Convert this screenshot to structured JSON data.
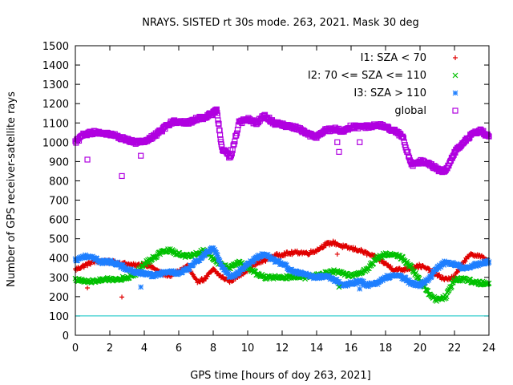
{
  "chart_data": {
    "type": "scatter",
    "title": "NRAYS. SISTED rt 30s mode. 263, 2021. Mask 30 deg",
    "xlabel": "GPS time [hours of doy 263, 2021]",
    "ylabel": "Number of GPS receiver-satellite rays",
    "xlim": [
      0,
      24
    ],
    "ylim": [
      0,
      1500
    ],
    "xticks": [
      0,
      2,
      4,
      6,
      8,
      10,
      12,
      14,
      16,
      18,
      20,
      22,
      24
    ],
    "yticks": [
      0,
      100,
      200,
      300,
      400,
      500,
      600,
      700,
      800,
      900,
      1000,
      1100,
      1200,
      1300,
      1400,
      1500
    ],
    "legend_position": "top-right",
    "reference_line": {
      "y": 100,
      "color": "#00c0c0"
    },
    "series": [
      {
        "name": "I1: SZA < 70",
        "marker": "+",
        "color": "#e00000",
        "x": [
          0,
          0.5,
          1,
          1.5,
          2,
          2.5,
          3,
          3.5,
          4,
          4.5,
          5,
          5.5,
          6,
          6.5,
          7,
          7.5,
          8,
          8.5,
          9,
          9.5,
          10,
          10.5,
          11,
          11.5,
          12,
          12.5,
          13,
          13.5,
          14,
          14.5,
          15,
          15.5,
          16,
          16.5,
          17,
          17.5,
          18,
          18.5,
          19,
          19.5,
          20,
          20.5,
          21,
          21.5,
          22,
          22.5,
          23,
          23.5,
          24
        ],
        "y": [
          340,
          360,
          380,
          385,
          380,
          375,
          370,
          360,
          370,
          350,
          320,
          310,
          330,
          360,
          280,
          290,
          340,
          300,
          280,
          310,
          340,
          370,
          390,
          410,
          420,
          425,
          430,
          425,
          440,
          470,
          480,
          460,
          450,
          440,
          420,
          400,
          370,
          340,
          340,
          350,
          360,
          340,
          310,
          290,
          300,
          380,
          420,
          410,
          380
        ]
      },
      {
        "name": "I2: 70 <= SZA <= 110",
        "marker": "x",
        "color": "#00c000",
        "x": [
          0,
          0.5,
          1,
          1.5,
          2,
          2.5,
          3,
          3.5,
          4,
          4.5,
          5,
          5.5,
          6,
          6.5,
          7,
          7.5,
          8,
          8.5,
          9,
          9.5,
          10,
          10.5,
          11,
          11.5,
          12,
          12.5,
          13,
          13.5,
          14,
          14.5,
          15,
          15.5,
          16,
          16.5,
          17,
          17.5,
          18,
          18.5,
          19,
          19.5,
          20,
          20.5,
          21,
          21.5,
          22,
          22.5,
          23,
          23.5,
          24
        ],
        "y": [
          290,
          280,
          280,
          285,
          290,
          290,
          300,
          320,
          370,
          400,
          430,
          440,
          420,
          410,
          420,
          440,
          400,
          360,
          350,
          380,
          350,
          320,
          300,
          300,
          300,
          300,
          300,
          300,
          310,
          320,
          330,
          320,
          310,
          320,
          350,
          400,
          420,
          420,
          400,
          350,
          280,
          220,
          180,
          200,
          290,
          290,
          280,
          270,
          270
        ]
      },
      {
        "name": "I3: SZA > 110",
        "marker": "*",
        "color": "#1e7fff",
        "x": [
          0,
          0.5,
          1,
          1.5,
          2,
          2.5,
          3,
          3.5,
          4,
          4.5,
          5,
          5.5,
          6,
          6.5,
          7,
          7.5,
          8,
          8.5,
          9,
          9.5,
          10,
          10.5,
          11,
          11.5,
          12,
          12.5,
          13,
          13.5,
          14,
          14.5,
          15,
          15.5,
          16,
          16.5,
          17,
          17.5,
          18,
          18.5,
          19,
          19.5,
          20,
          20.5,
          21,
          21.5,
          22,
          22.5,
          23,
          23.5,
          24
        ],
        "y": [
          390,
          410,
          400,
          380,
          380,
          370,
          340,
          330,
          320,
          310,
          320,
          330,
          320,
          340,
          380,
          420,
          450,
          360,
          300,
          330,
          370,
          400,
          420,
          390,
          370,
          340,
          320,
          310,
          300,
          310,
          290,
          260,
          270,
          280,
          260,
          270,
          300,
          310,
          300,
          270,
          260,
          290,
          350,
          380,
          370,
          350,
          360,
          370,
          380
        ]
      },
      {
        "name": "global",
        "marker": "square",
        "color": "#b000e0",
        "x": [
          0,
          0.5,
          1,
          1.5,
          2,
          2.5,
          3,
          3.5,
          4,
          4.5,
          5,
          5.5,
          6,
          6.5,
          7,
          7.5,
          8,
          8.2,
          8.5,
          9,
          9.5,
          10,
          10.5,
          11,
          11.5,
          12,
          12.5,
          13,
          13.5,
          14,
          14.5,
          15,
          15.5,
          16,
          16.5,
          17,
          17.5,
          18,
          18.5,
          19,
          19.5,
          20,
          20.5,
          21,
          21.5,
          22,
          22.5,
          23,
          23.5,
          24
        ],
        "y": [
          1000,
          1040,
          1050,
          1050,
          1040,
          1030,
          1010,
          1000,
          1000,
          1030,
          1060,
          1100,
          1110,
          1100,
          1120,
          1130,
          1150,
          1170,
          970,
          920,
          1100,
          1120,
          1100,
          1140,
          1100,
          1090,
          1080,
          1070,
          1040,
          1030,
          1060,
          1070,
          1060,
          1080,
          1080,
          1080,
          1090,
          1080,
          1060,
          1030,
          880,
          900,
          890,
          860,
          850,
          950,
          1000,
          1040,
          1060,
          1030
        ]
      }
    ],
    "outliers": [
      {
        "series": "I1: SZA < 70",
        "x": 0.7,
        "y": 245
      },
      {
        "series": "I1: SZA < 70",
        "x": 2.7,
        "y": 198
      },
      {
        "series": "I1: SZA < 70",
        "x": 15.2,
        "y": 420
      },
      {
        "series": "I2: 70 <= SZA <= 110",
        "x": 15.3,
        "y": 250
      },
      {
        "series": "I3: SZA > 110",
        "x": 3.8,
        "y": 250
      },
      {
        "series": "I3: SZA > 110",
        "x": 16.5,
        "y": 240
      },
      {
        "series": "global",
        "x": 0.7,
        "y": 910
      },
      {
        "series": "global",
        "x": 2.7,
        "y": 825
      },
      {
        "series": "global",
        "x": 3.8,
        "y": 930
      },
      {
        "series": "global",
        "x": 9.0,
        "y": 960
      },
      {
        "series": "global",
        "x": 15.2,
        "y": 1000
      },
      {
        "series": "global",
        "x": 15.3,
        "y": 950
      },
      {
        "series": "global",
        "x": 16.5,
        "y": 1000
      }
    ]
  }
}
